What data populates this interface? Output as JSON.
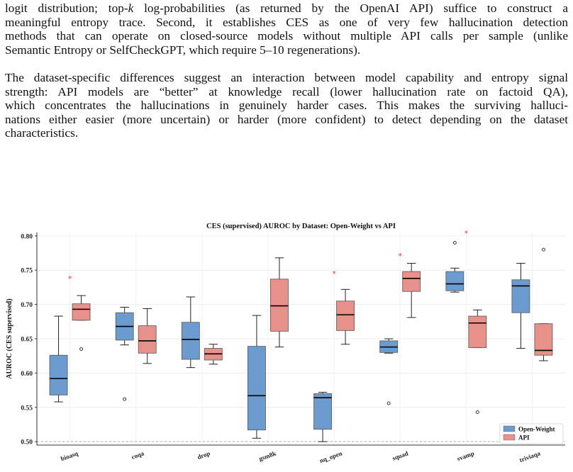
{
  "paper": {
    "paragraph1": [
      "logit distribution; top-k log-probabilities (as returned by the OpenAI API) suffice to construct a",
      "meaningful entropy trace. Second, it establishes CES as one of very few hallucination detection",
      "methods that can operate on closed-source models without multiple API calls per sample (unlike",
      "Semantic Entropy or SelfCheckGPT, which require 5–10 regenerations)."
    ],
    "paragraph2": [
      "The dataset-specific differences suggest an interaction between model capability and entropy signal",
      "strength: API models are “better” at knowledge recall (lower hallucination rate on factoid QA),",
      "which concentrates the hallucinations in genuinely harder cases. This makes the surviving halluci-",
      "nations either easier (more uncertain) or harder (more confident) to detect depending on the dataset",
      "characteristics."
    ]
  },
  "chart_data": {
    "type": "box",
    "title": "CES (supervised) AUROC by Dataset: Open-Weight vs API",
    "xlabel": "",
    "ylabel": "AUROC (CES supervised)",
    "ylim": [
      0.495,
      0.805
    ],
    "yticks": [
      "0.50",
      "0.55",
      "0.60",
      "0.65",
      "0.70",
      "0.75",
      "0.80"
    ],
    "grid": true,
    "legend_position": "bottom-right",
    "reference_line": 0.5,
    "categories": [
      "bioasq",
      "coqa",
      "drop",
      "gsm8k",
      "nq_open",
      "squad",
      "svamp",
      "triviaqa"
    ],
    "series": [
      {
        "name": "Open-Weight",
        "color": "#6c9bcf",
        "boxes": [
          {
            "whislo": 0.558,
            "q1": 0.568,
            "med": 0.592,
            "q3": 0.626,
            "whishi": 0.683,
            "fliers": []
          },
          {
            "whislo": 0.641,
            "q1": 0.648,
            "med": 0.668,
            "q3": 0.688,
            "whishi": 0.696,
            "fliers": [
              0.562
            ]
          },
          {
            "whislo": 0.608,
            "q1": 0.62,
            "med": 0.649,
            "q3": 0.674,
            "whishi": 0.711,
            "fliers": []
          },
          {
            "whislo": 0.505,
            "q1": 0.517,
            "med": 0.567,
            "q3": 0.639,
            "whishi": 0.684,
            "fliers": []
          },
          {
            "whislo": 0.5,
            "q1": 0.518,
            "med": 0.564,
            "q3": 0.57,
            "whishi": 0.572,
            "fliers": []
          },
          {
            "whislo": 0.629,
            "q1": 0.63,
            "med": 0.638,
            "q3": 0.647,
            "whishi": 0.65,
            "fliers": [
              0.556
            ]
          },
          {
            "whislo": 0.718,
            "q1": 0.72,
            "med": 0.73,
            "q3": 0.748,
            "whishi": 0.753,
            "fliers": [
              0.79
            ]
          },
          {
            "whislo": 0.636,
            "q1": 0.688,
            "med": 0.727,
            "q3": 0.736,
            "whishi": 0.76,
            "fliers": []
          }
        ]
      },
      {
        "name": "API",
        "color": "#e8908a",
        "boxes": [
          {
            "whislo": 0.677,
            "q1": 0.677,
            "med": 0.693,
            "q3": 0.701,
            "whishi": 0.713,
            "fliers": [
              0.635
            ]
          },
          {
            "whislo": 0.614,
            "q1": 0.629,
            "med": 0.647,
            "q3": 0.669,
            "whishi": 0.694,
            "fliers": []
          },
          {
            "whislo": 0.613,
            "q1": 0.619,
            "med": 0.628,
            "q3": 0.636,
            "whishi": 0.642,
            "fliers": []
          },
          {
            "whislo": 0.638,
            "q1": 0.661,
            "med": 0.698,
            "q3": 0.737,
            "whishi": 0.768,
            "fliers": []
          },
          {
            "whislo": 0.642,
            "q1": 0.662,
            "med": 0.685,
            "q3": 0.705,
            "whishi": 0.722,
            "fliers": []
          },
          {
            "whislo": 0.681,
            "q1": 0.719,
            "med": 0.738,
            "q3": 0.748,
            "whishi": 0.76,
            "fliers": []
          },
          {
            "whislo": 0.637,
            "q1": 0.637,
            "med": 0.673,
            "q3": 0.683,
            "whishi": 0.692,
            "fliers": [
              0.543
            ]
          },
          {
            "whislo": 0.618,
            "q1": 0.626,
            "med": 0.633,
            "q3": 0.672,
            "whishi": 0.672,
            "fliers": [
              0.78
            ]
          }
        ]
      }
    ],
    "significance": [
      {
        "category": "bioasq",
        "label": "*",
        "y": 0.739
      },
      {
        "category": "nq_open",
        "label": "*",
        "y": 0.746
      },
      {
        "category": "squad",
        "label": "*",
        "y": 0.772
      },
      {
        "category": "svamp",
        "label": "*",
        "y": 0.805
      }
    ],
    "significance_color": "#e53935"
  }
}
